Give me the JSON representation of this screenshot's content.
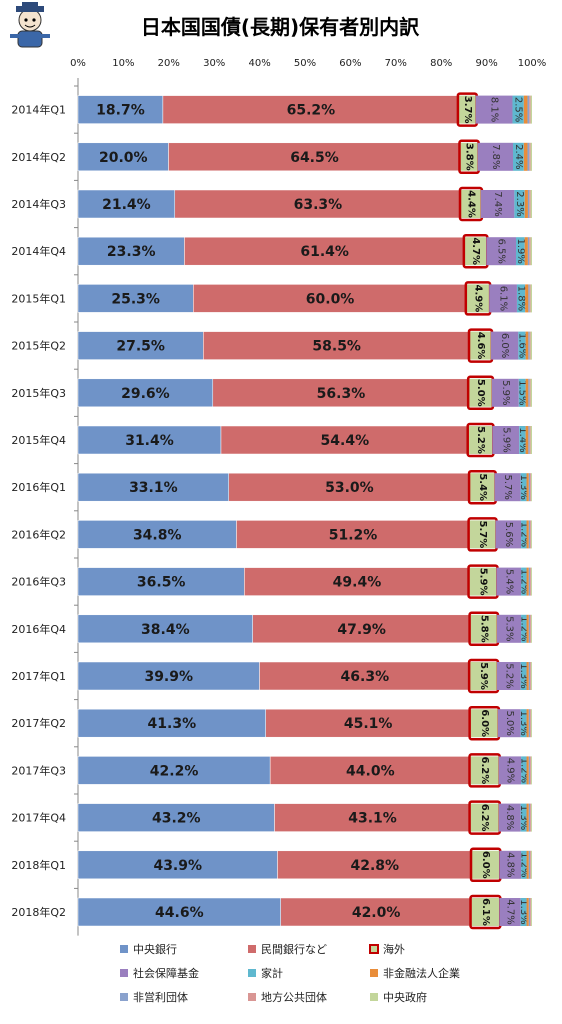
{
  "chart_data": {
    "type": "bar",
    "orientation": "horizontal",
    "stacked": "percent",
    "title": "日本国国債(長期)保有者別内訳",
    "x_ticks": [
      "0%",
      "10%",
      "20%",
      "30%",
      "40%",
      "50%",
      "60%",
      "70%",
      "80%",
      "90%",
      "100%"
    ],
    "xlim": [
      0,
      100
    ],
    "grid": false,
    "legend_position": "bottom",
    "categories": [
      "2014年Q1",
      "2014年Q2",
      "2014年Q3",
      "2014年Q4",
      "2015年Q1",
      "2015年Q2",
      "2015年Q3",
      "2015年Q4",
      "2016年Q1",
      "2016年Q2",
      "2016年Q3",
      "2016年Q4",
      "2017年Q1",
      "2017年Q2",
      "2017年Q3",
      "2017年Q4",
      "2018年Q1",
      "2018年Q2"
    ],
    "series": [
      {
        "name": "中央銀行",
        "color": "#6f93c8",
        "values": [
          18.7,
          20.0,
          21.4,
          23.3,
          25.3,
          27.5,
          29.6,
          31.4,
          33.1,
          34.8,
          36.5,
          38.4,
          39.9,
          41.3,
          42.2,
          43.2,
          43.9,
          44.6
        ],
        "labels": [
          "18.7%",
          "20.0%",
          "21.4%",
          "23.3%",
          "25.3%",
          "27.5%",
          "29.6%",
          "31.4%",
          "33.1%",
          "34.8%",
          "36.5%",
          "38.4%",
          "39.9%",
          "41.3%",
          "42.2%",
          "43.2%",
          "43.9%",
          "44.6%"
        ]
      },
      {
        "name": "民間銀行など",
        "color": "#cf6b6b",
        "values": [
          65.2,
          64.5,
          63.3,
          61.4,
          60.0,
          58.5,
          56.3,
          54.4,
          53.0,
          51.2,
          49.4,
          47.9,
          46.3,
          45.1,
          44.0,
          43.1,
          42.8,
          42.0
        ],
        "labels": [
          "65.2%",
          "64.5%",
          "63.3%",
          "61.4%",
          "60.0%",
          "58.5%",
          "56.3%",
          "54.4%",
          "53.0%",
          "51.2%",
          "49.4%",
          "47.9%",
          "46.3%",
          "45.1%",
          "44.0%",
          "43.1%",
          "42.8%",
          "42.0%"
        ]
      },
      {
        "name": "海外",
        "color": "#c3d69b",
        "highlight": "#c00000",
        "values": [
          3.7,
          3.8,
          4.4,
          4.7,
          4.9,
          4.6,
          5.0,
          5.2,
          5.4,
          5.7,
          5.9,
          5.8,
          5.9,
          6.0,
          6.2,
          6.2,
          6.0,
          6.1
        ],
        "labels": [
          "3.7%",
          "3.8%",
          "4.4%",
          "4.7%",
          "4.9%",
          "4.6%",
          "5.0%",
          "5.2%",
          "5.4%",
          "5.7%",
          "5.9%",
          "5.8%",
          "5.9%",
          "6.0%",
          "6.2%",
          "6.2%",
          "6.0%",
          "6.1%"
        ]
      },
      {
        "name": "社会保障基金",
        "color": "#9a7fbf",
        "values": [
          8.1,
          7.8,
          7.4,
          6.5,
          6.1,
          6.0,
          5.9,
          5.9,
          5.7,
          5.6,
          5.4,
          5.3,
          5.2,
          5.0,
          4.9,
          4.8,
          4.8,
          4.7
        ],
        "labels": [
          "8.1%",
          "7.8%",
          "7.4%",
          "6.5%",
          "6.1%",
          "6.0%",
          "5.9%",
          "5.9%",
          "5.7%",
          "5.6%",
          "5.4%",
          "5.3%",
          "5.2%",
          "5.0%",
          "4.9%",
          "4.8%",
          "4.8%",
          "4.7%"
        ]
      },
      {
        "name": "家計",
        "color": "#5fb8cf",
        "values": [
          2.5,
          2.4,
          2.3,
          1.9,
          1.8,
          1.6,
          1.5,
          1.4,
          1.3,
          1.2,
          1.2,
          1.2,
          1.3,
          1.3,
          1.2,
          1.3,
          1.2,
          1.3
        ],
        "labels": [
          "2.5%",
          "2.4%",
          "2.3%",
          "1.9%",
          "1.8%",
          "1.6%",
          "1.5%",
          "1.4%",
          "1.3%",
          "1.2%",
          "1.2%",
          "1.2%",
          "1.3%",
          "1.3%",
          "1.2%",
          "1.3%",
          "1.2%",
          "1.3%"
        ]
      },
      {
        "name": "非金融法人企業",
        "color": "#e98d3a",
        "values": [
          0.8,
          0.8,
          0.7,
          0.7,
          0.7,
          0.6,
          0.6,
          0.6,
          0.5,
          0.5,
          0.5,
          0.5,
          0.5,
          0.5,
          0.5,
          0.5,
          0.5,
          0.5
        ]
      },
      {
        "name": "非営利団体",
        "color": "#8aa2cd",
        "values": [
          0.4,
          0.4,
          0.3,
          0.3,
          0.3,
          0.3,
          0.3,
          0.3,
          0.3,
          0.3,
          0.3,
          0.3,
          0.3,
          0.3,
          0.3,
          0.3,
          0.3,
          0.3
        ]
      },
      {
        "name": "地方公共団体",
        "color": "#d99694",
        "values": [
          0.3,
          0.3,
          0.3,
          0.3,
          0.2,
          0.2,
          0.2,
          0.2,
          0.2,
          0.2,
          0.2,
          0.2,
          0.2,
          0.2,
          0.2,
          0.2,
          0.2,
          0.2
        ]
      },
      {
        "name": "中央政府",
        "color": "#c3d69b",
        "values": [
          0.3,
          0.3,
          0.3,
          0.3,
          0.3,
          0.3,
          0.3,
          0.3,
          0.2,
          0.2,
          0.2,
          0.2,
          0.2,
          0.2,
          0.2,
          0.2,
          0.2,
          0.2
        ]
      }
    ]
  },
  "mascot_icon": "cartoon-mascot-icon"
}
